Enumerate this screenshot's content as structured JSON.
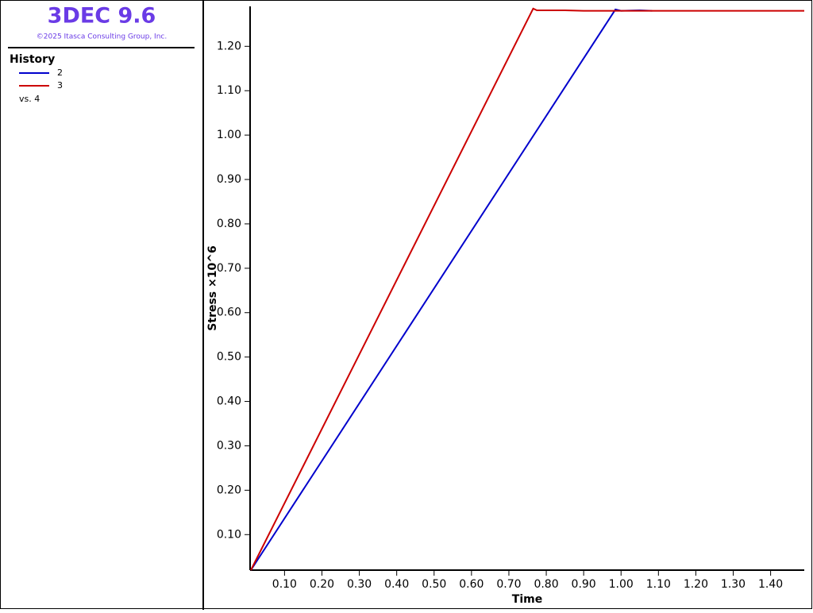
{
  "header": {
    "title": "3DEC 9.6",
    "copyright": "©2025 Itasca Consulting Group, Inc."
  },
  "chart_data": {
    "type": "line",
    "legend_title": "History",
    "legend_note": "vs. 4",
    "xlabel": "Time",
    "ylabel": "Stress ×10^6",
    "xlim": [
      0.01,
      1.49
    ],
    "ylim": [
      0.02,
      1.29
    ],
    "xticks": [
      {
        "value": 0.1,
        "label": "0.10"
      },
      {
        "value": 0.2,
        "label": "0.20"
      },
      {
        "value": 0.3,
        "label": "0.30"
      },
      {
        "value": 0.4,
        "label": "0.40"
      },
      {
        "value": 0.5,
        "label": "0.50"
      },
      {
        "value": 0.6,
        "label": "0.60"
      },
      {
        "value": 0.7,
        "label": "0.70"
      },
      {
        "value": 0.8,
        "label": "0.80"
      },
      {
        "value": 0.9,
        "label": "0.90"
      },
      {
        "value": 1.0,
        "label": "1.00"
      },
      {
        "value": 1.1,
        "label": "1.10"
      },
      {
        "value": 1.2,
        "label": "1.20"
      },
      {
        "value": 1.3,
        "label": "1.30"
      },
      {
        "value": 1.4,
        "label": "1.40"
      }
    ],
    "yticks": [
      {
        "value": 0.1,
        "label": "0.10"
      },
      {
        "value": 0.2,
        "label": "0.20"
      },
      {
        "value": 0.3,
        "label": "0.30"
      },
      {
        "value": 0.4,
        "label": "0.40"
      },
      {
        "value": 0.5,
        "label": "0.50"
      },
      {
        "value": 0.6,
        "label": "0.60"
      },
      {
        "value": 0.7,
        "label": "0.70"
      },
      {
        "value": 0.8,
        "label": "0.80"
      },
      {
        "value": 0.9,
        "label": "0.90"
      },
      {
        "value": 1.0,
        "label": "1.00"
      },
      {
        "value": 1.1,
        "label": "1.10"
      },
      {
        "value": 1.2,
        "label": "1.20"
      }
    ],
    "series": [
      {
        "name": "2",
        "color": "#0000cc",
        "x": [
          0.01,
          0.985,
          1.0,
          1.05,
          1.083
        ],
        "values": [
          0.02,
          1.283,
          1.28,
          1.281,
          1.28
        ]
      },
      {
        "name": "3",
        "color": "#cc0000",
        "x": [
          0.01,
          0.765,
          0.775,
          0.85,
          0.9,
          1.49
        ],
        "values": [
          0.02,
          1.285,
          1.281,
          1.281,
          1.28,
          1.28
        ]
      }
    ]
  }
}
